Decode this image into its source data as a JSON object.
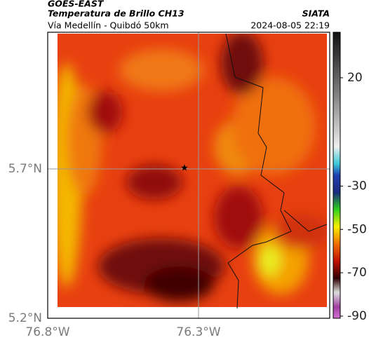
{
  "header": {
    "title": "GOES-EAST",
    "subtitle": "Temperatura de Brillo CH13",
    "route": "Vía Medellín - Quibdó 50km",
    "source": "SIATA",
    "datetime": "2024-08-05 22:19"
  },
  "map": {
    "lat_labels": [
      "5.7°N",
      "5.2°N"
    ],
    "lon_labels": [
      "76.8°W",
      "76.3°W"
    ]
  },
  "colorbar": {
    "lim": [
      -91,
      41
    ],
    "ticks": [
      20,
      -30,
      -50,
      -70,
      -90
    ]
  }
}
